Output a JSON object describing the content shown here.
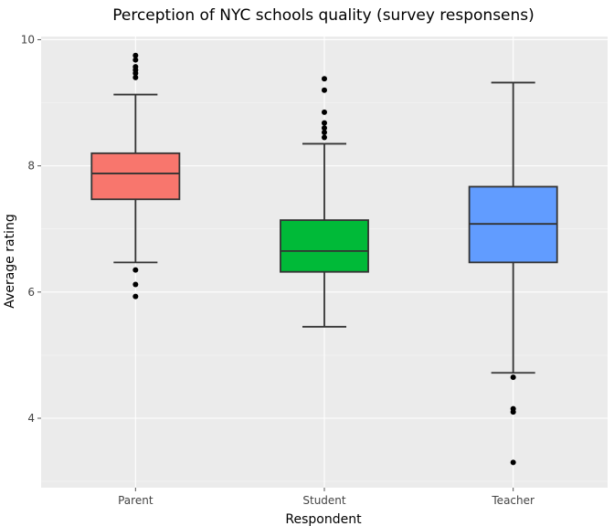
{
  "chart_data": {
    "type": "box",
    "title": "Perception of NYC schools quality (survey responsens)",
    "xlabel": "Respondent",
    "ylabel": "Average rating",
    "ylim": [
      2.9,
      10.05
    ],
    "yticks": [
      4,
      6,
      8,
      10
    ],
    "grid": true,
    "legend": "none",
    "categories": [
      "Parent",
      "Student",
      "Teacher"
    ],
    "series": [
      {
        "category": "Parent",
        "color": "#F8766D",
        "whisker_low": 6.47,
        "q1": 7.47,
        "median": 7.88,
        "q3": 8.2,
        "whisker_high": 9.13,
        "outliers": [
          9.75,
          9.68,
          9.57,
          9.52,
          9.47,
          9.4,
          6.35,
          6.12,
          5.93
        ]
      },
      {
        "category": "Student",
        "color": "#00BA38",
        "whisker_low": 5.45,
        "q1": 6.32,
        "median": 6.65,
        "q3": 7.14,
        "whisker_high": 8.35,
        "outliers": [
          9.38,
          9.2,
          8.85,
          8.68,
          8.6,
          8.53,
          8.45
        ]
      },
      {
        "category": "Teacher",
        "color": "#619CFF",
        "whisker_low": 4.72,
        "q1": 6.47,
        "median": 7.08,
        "q3": 7.67,
        "whisker_high": 9.32,
        "outliers": [
          4.65,
          4.15,
          4.1,
          3.3
        ]
      }
    ]
  }
}
